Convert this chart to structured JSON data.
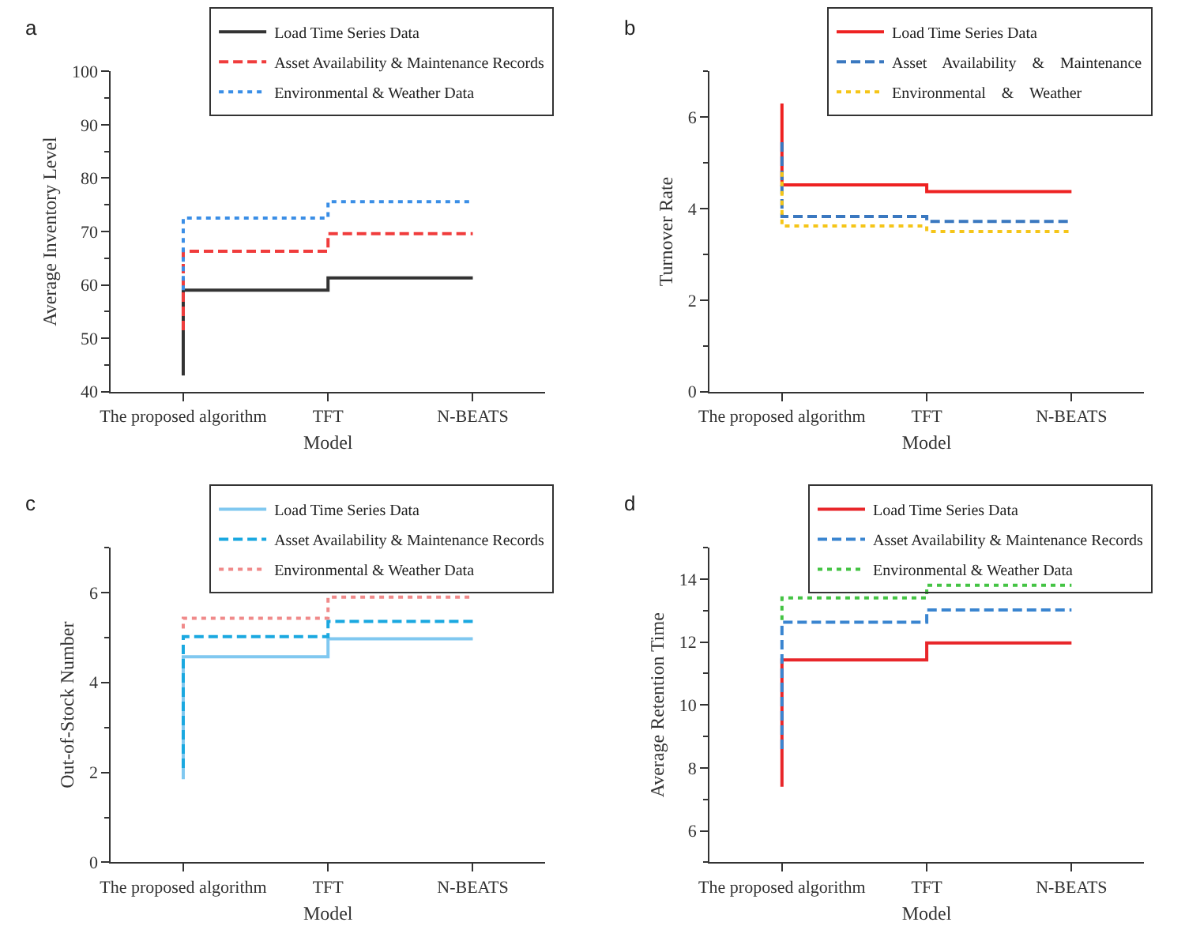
{
  "chart_data": [
    {
      "type": "step",
      "title": "a",
      "xlabel": "Model",
      "ylabel": "Average Inventory Level",
      "categories": [
        "The proposed algorithm",
        "TFT",
        "N-BEATS"
      ],
      "ylim": [
        40,
        100
      ],
      "yticks": [
        40,
        50,
        60,
        70,
        80,
        90,
        100
      ],
      "legend": "top right",
      "series": [
        {
          "name": "Load Time Series Data",
          "color": "#333333",
          "line_style": "solid",
          "x": [
            "The proposed algorithm",
            "The proposed algorithm",
            "TFT",
            "N-BEATS"
          ],
          "values": [
            43,
            59,
            61.3,
            61.3
          ]
        },
        {
          "name": "Asset Availability & Maintenance Records",
          "color": "#f03c3c",
          "line_style": "dashed",
          "x": [
            "The proposed algorithm",
            "The proposed algorithm",
            "TFT",
            "N-BEATS"
          ],
          "values": [
            51.5,
            66.3,
            69.6,
            69.6
          ]
        },
        {
          "name": "Environmental & Weather Data",
          "color": "#3a8ee6",
          "line_style": "dotted",
          "x": [
            "The proposed algorithm",
            "The proposed algorithm",
            "TFT",
            "N-BEATS"
          ],
          "values": [
            59,
            72.5,
            75.6,
            75.6
          ]
        }
      ]
    },
    {
      "type": "step",
      "title": "b",
      "xlabel": "Model",
      "ylabel": "Turnover Rate",
      "categories": [
        "The proposed algorithm",
        "TFT",
        "N-BEATS"
      ],
      "ylim": [
        0,
        7
      ],
      "yticks": [
        0,
        2,
        4,
        6
      ],
      "legend": "top right",
      "series": [
        {
          "name": "Load Time Series Data",
          "color": "#ee2222",
          "line_style": "solid",
          "x": [
            "The proposed algorithm",
            "The proposed algorithm",
            "TFT",
            "N-BEATS"
          ],
          "values": [
            6.3,
            4.52,
            4.37,
            4.37
          ]
        },
        {
          "name": "Asset    Availability    &    Maintenance",
          "color": "#3a78c0",
          "line_style": "dashed",
          "x": [
            "The proposed algorithm",
            "The proposed algorithm",
            "TFT",
            "N-BEATS"
          ],
          "values": [
            5.45,
            3.83,
            3.72,
            3.72
          ]
        },
        {
          "name": "Environmental    &    Weather",
          "color": "#f5c518",
          "line_style": "dotted",
          "x": [
            "The proposed algorithm",
            "The proposed algorithm",
            "TFT",
            "N-BEATS"
          ],
          "values": [
            4.8,
            3.62,
            3.5,
            3.5
          ]
        }
      ]
    },
    {
      "type": "step",
      "title": "c",
      "xlabel": "Model",
      "ylabel": "Out-of-Stock Number",
      "categories": [
        "The proposed algorithm",
        "TFT",
        "N-BEATS"
      ],
      "ylim": [
        0,
        7
      ],
      "yticks": [
        0,
        2,
        4,
        6
      ],
      "legend": "top right",
      "series": [
        {
          "name": "Load Time Series Data",
          "color": "#80c8f0",
          "line_style": "solid",
          "x": [
            "The proposed algorithm",
            "The proposed algorithm",
            "TFT",
            "N-BEATS"
          ],
          "values": [
            1.85,
            4.57,
            4.97,
            4.97
          ]
        },
        {
          "name": "Asset Availability & Maintenance Records",
          "color": "#1aa8e0",
          "line_style": "dashed",
          "x": [
            "The proposed algorithm",
            "The proposed algorithm",
            "TFT",
            "N-BEATS"
          ],
          "values": [
            2.1,
            5.02,
            5.36,
            5.36
          ]
        },
        {
          "name": "Environmental & Weather Data",
          "color": "#f08a8a",
          "line_style": "dotted",
          "x": [
            "The proposed algorithm",
            "The proposed algorithm",
            "TFT",
            "N-BEATS"
          ],
          "values": [
            5.2,
            5.43,
            5.9,
            5.9
          ]
        }
      ]
    },
    {
      "type": "step",
      "title": "d",
      "xlabel": "Model",
      "ylabel": "Average Retention Time",
      "categories": [
        "The proposed algorithm",
        "TFT",
        "N-BEATS"
      ],
      "ylim": [
        5,
        15
      ],
      "yticks": [
        6,
        8,
        10,
        12,
        14
      ],
      "legend": "top right",
      "series": [
        {
          "name": "Load Time Series Data",
          "color": "#e8262a",
          "line_style": "solid",
          "x": [
            "The proposed algorithm",
            "The proposed algorithm",
            "TFT",
            "N-BEATS"
          ],
          "values": [
            7.4,
            11.43,
            11.97,
            11.97
          ]
        },
        {
          "name": "Asset Availability & Maintenance Records",
          "color": "#3a85d0",
          "line_style": "dashed",
          "x": [
            "The proposed algorithm",
            "The proposed algorithm",
            "TFT",
            "N-BEATS"
          ],
          "values": [
            8.6,
            12.63,
            13.02,
            13.02
          ]
        },
        {
          "name": "Environmental & Weather Data",
          "color": "#44c444",
          "line_style": "dotted",
          "x": [
            "The proposed algorithm",
            "The proposed algorithm",
            "TFT",
            "N-BEATS"
          ],
          "values": [
            12.7,
            13.4,
            13.8,
            13.8
          ]
        }
      ]
    }
  ]
}
